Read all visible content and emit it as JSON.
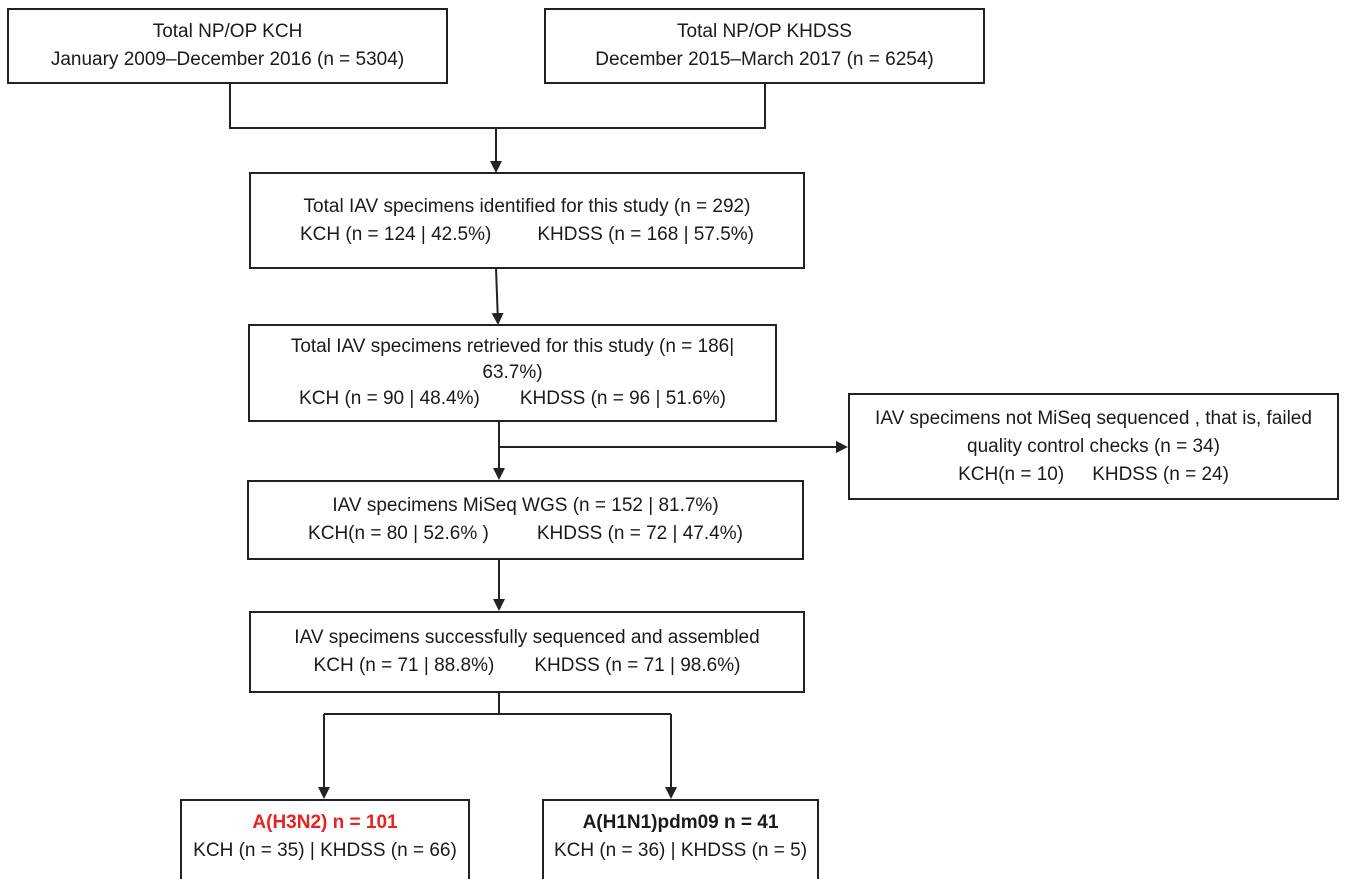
{
  "boxes": {
    "kch_source": {
      "line1": "Total NP/OP KCH",
      "line2": "January 2009–December 2016  (n = 5304)"
    },
    "khdss_source": {
      "line1": "Total NP/OP KHDSS",
      "line2": "December 2015–March 2017  (n = 6254)"
    },
    "identified": {
      "line1": "Total IAV specimens identified for this study (n = 292)",
      "kch": "KCH (n = 124  |  42.5%)",
      "khdss": "KHDSS (n = 168  |  57.5%)"
    },
    "retrieved": {
      "line1": "Total IAV specimens retrieved for this study (n = 186|",
      "line2": "63.7%)",
      "kch": "KCH (n = 90  |  48.4%)",
      "khdss": "KHDSS (n = 96  |  51.6%)"
    },
    "not_sequenced": {
      "line1": "IAV specimens not  MiSeq sequenced , that is, failed",
      "line2": "quality control checks  (n = 34)",
      "kch": "KCH(n = 10)",
      "khdss": "KHDSS (n = 24)"
    },
    "wgs": {
      "line1": "IAV specimens MiSeq WGS (n = 152  |  81.7%)",
      "kch": "KCH(n = 80  |  52.6% )",
      "khdss": "KHDSS (n = 72  |  47.4%)"
    },
    "assembled": {
      "line1": "IAV specimens successfully sequenced and assembled",
      "kch": "KCH (n = 71  |  88.8%)",
      "khdss": "KHDSS (n = 71  |  98.6%)"
    },
    "h3n2": {
      "title": "A(H3N2) n = 101",
      "counts": "KCH (n = 35)  |  KHDSS (n = 66)",
      "title_color": "#e8221f"
    },
    "h1n1": {
      "title": "A(H1N1)pdm09 n = 41",
      "counts": "KCH (n = 36)  |  KHDSS (n = 5)"
    }
  },
  "colors": {
    "line": "#222222",
    "highlight": "#e8221f"
  }
}
